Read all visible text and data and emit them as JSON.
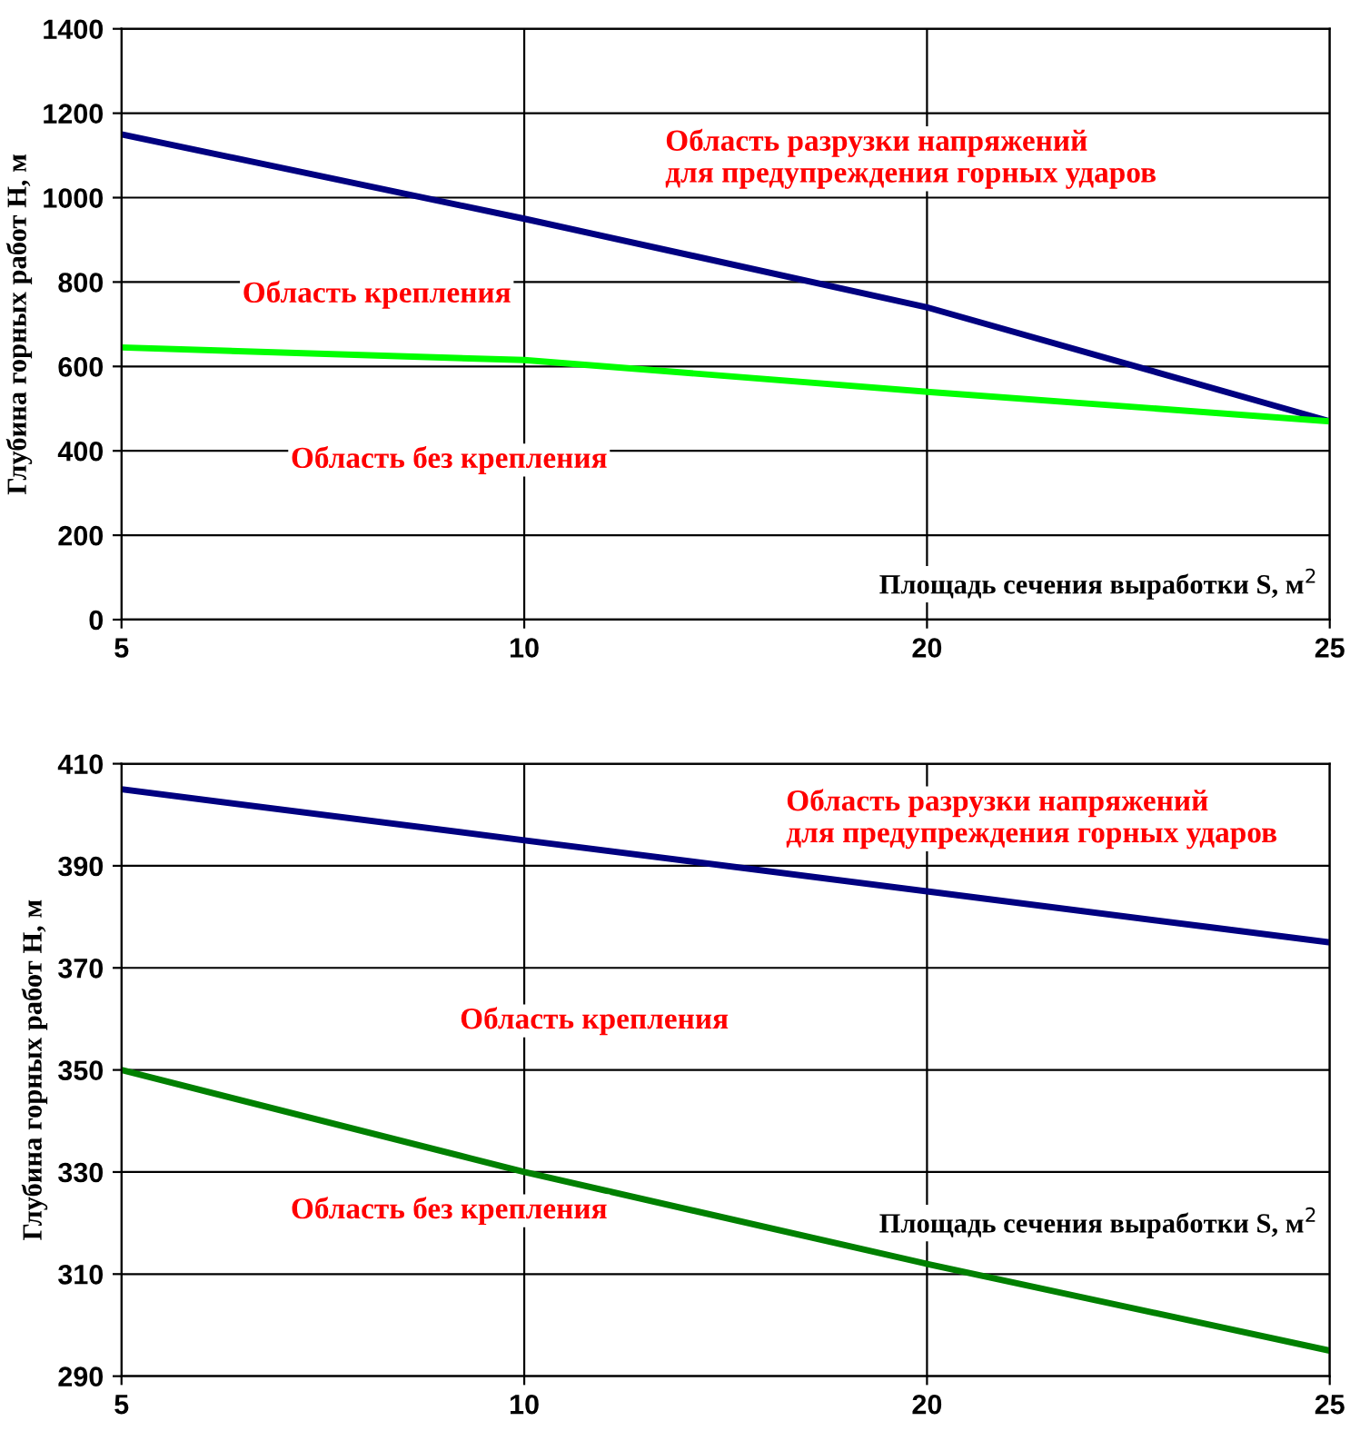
{
  "chart_data": [
    {
      "type": "line",
      "xlabel": "Площадь сечения выработки S, м$^{2}$",
      "ylabel": "Глубина горных работ Н, м",
      "categories": [
        "5",
        "10",
        "20",
        "25"
      ],
      "ylim": [
        0,
        1400
      ],
      "yticks": [
        0,
        200,
        400,
        600,
        800,
        1000,
        1200,
        1400
      ],
      "grid": true,
      "marker": "none",
      "line_style": "solid",
      "series": [
        {
          "color": "#000080",
          "values": [
            1150,
            950,
            740,
            470
          ]
        },
        {
          "color": "#00ff00",
          "values": [
            645,
            615,
            540,
            470
          ]
        }
      ],
      "annotations": [
        "Область разрузки напряжений\nдля предупреждения горных ударов",
        "Область крепления",
        "Область без крепления"
      ]
    },
    {
      "type": "line",
      "xlabel": "Площадь сечения выработки S, м$^{2}$",
      "ylabel": "Глубина горных работ Н, м",
      "categories": [
        "5",
        "10",
        "20",
        "25"
      ],
      "ylim": [
        290,
        410
      ],
      "yticks": [
        290,
        310,
        330,
        350,
        370,
        390,
        410
      ],
      "grid": true,
      "marker": "none",
      "line_style": "solid",
      "series": [
        {
          "color": "#000080",
          "values": [
            405,
            395,
            385,
            375
          ]
        },
        {
          "color": "#008000",
          "values": [
            350,
            330,
            312,
            295
          ]
        }
      ],
      "annotations": [
        "Область разрузки напряжений\nдля предупреждения горных ударов",
        "Область крепления",
        "Область без крепления"
      ]
    }
  ]
}
